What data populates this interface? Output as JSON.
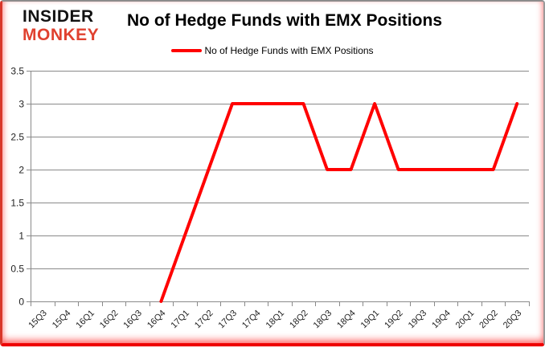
{
  "logo": {
    "line1": "INSIDER",
    "line2": "MONKEY"
  },
  "header": {
    "title": "No of Hedge Funds with EMX Positions"
  },
  "legend": {
    "label": "No of Hedge Funds with EMX Positions"
  },
  "colors": {
    "line": "#ff0000",
    "grid": "#8a8a8a",
    "axis_text": "#1f1f1f",
    "logo_black": "#121212",
    "logo_red": "#e0412f",
    "frame_glow": "#ff0000"
  },
  "chart_data": {
    "type": "line",
    "title": "No of Hedge Funds with EMX Positions",
    "xlabel": "",
    "ylabel": "",
    "categories": [
      "15Q3",
      "15Q4",
      "16Q1",
      "16Q2",
      "16Q3",
      "16Q4",
      "17Q1",
      "17Q2",
      "17Q3",
      "17Q4",
      "18Q1",
      "18Q2",
      "18Q3",
      "18Q4",
      "19Q1",
      "19Q2",
      "19Q3",
      "19Q4",
      "20Q1",
      "20Q2",
      "20Q3"
    ],
    "series": [
      {
        "name": "No of Hedge Funds with EMX Positions",
        "color": "#ff0000",
        "values": [
          null,
          null,
          null,
          null,
          null,
          0,
          1,
          2,
          3,
          3,
          3,
          3,
          2,
          2,
          3,
          2,
          2,
          2,
          2,
          2,
          3
        ]
      }
    ],
    "ylim": [
      0,
      3.5
    ],
    "yticks": [
      "0",
      "0.5",
      "1",
      "1.5",
      "2",
      "2.5",
      "3",
      "3.5"
    ],
    "grid": true,
    "legend_position": "top"
  }
}
